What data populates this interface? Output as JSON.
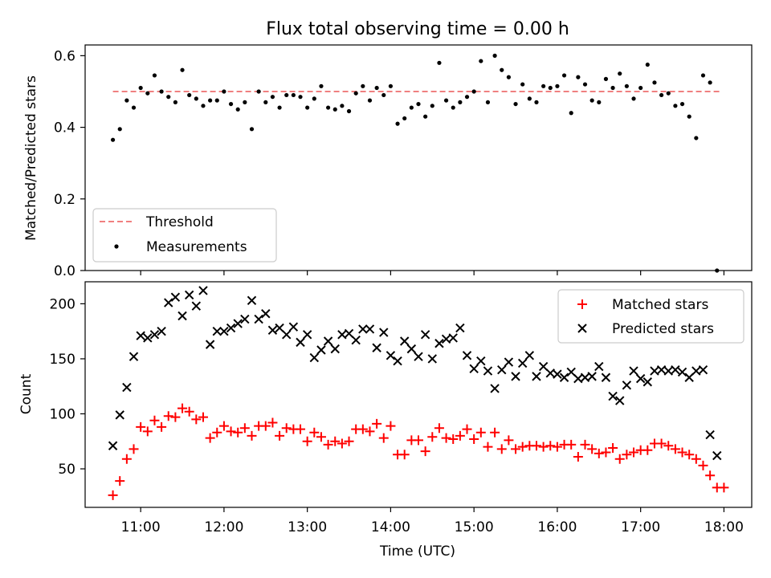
{
  "colors": {
    "threshold": "#f08080",
    "measurement": "#000000",
    "matched": "#ff0000",
    "predicted": "#000000"
  },
  "chart_data": [
    {
      "type": "scatter",
      "title": "Flux total observing time = 0.00 h",
      "xlabel": "",
      "ylabel": "Matched/Predicted stars",
      "xlim": [
        "10:20",
        "18:20"
      ],
      "ylim": [
        0,
        0.63
      ],
      "yticks": [
        "0.0",
        "0.2",
        "0.4",
        "0.6"
      ],
      "legend_position": "lower-left",
      "threshold": {
        "name": "Threshold",
        "value": 0.5,
        "x_range": [
          "10:40",
          "17:58"
        ]
      },
      "series": [
        {
          "name": "Measurements",
          "x": [
            "10:40",
            "10:45",
            "10:50",
            "10:55",
            "11:00",
            "11:05",
            "11:10",
            "11:15",
            "11:20",
            "11:25",
            "11:30",
            "11:35",
            "11:40",
            "11:45",
            "11:50",
            "11:55",
            "12:00",
            "12:05",
            "12:10",
            "12:15",
            "12:20",
            "12:25",
            "12:30",
            "12:35",
            "12:40",
            "12:45",
            "12:50",
            "12:55",
            "13:00",
            "13:05",
            "13:10",
            "13:15",
            "13:20",
            "13:25",
            "13:30",
            "13:35",
            "13:40",
            "13:45",
            "13:50",
            "13:55",
            "14:00",
            "14:05",
            "14:10",
            "14:15",
            "14:20",
            "14:25",
            "14:30",
            "14:35",
            "14:40",
            "14:45",
            "14:50",
            "14:55",
            "15:00",
            "15:05",
            "15:10",
            "15:15",
            "15:20",
            "15:25",
            "15:30",
            "15:35",
            "15:40",
            "15:45",
            "15:50",
            "15:55",
            "16:00",
            "16:05",
            "16:10",
            "16:15",
            "16:20",
            "16:25",
            "16:30",
            "16:35",
            "16:40",
            "16:45",
            "16:50",
            "16:55",
            "17:00",
            "17:05",
            "17:10",
            "17:15",
            "17:20",
            "17:25",
            "17:30",
            "17:35",
            "17:40",
            "17:45",
            "17:50",
            "17:55",
            "17:57"
          ],
          "y": [
            0.365,
            0.395,
            0.475,
            0.455,
            0.51,
            0.495,
            0.545,
            0.5,
            0.485,
            0.47,
            0.56,
            0.49,
            0.48,
            0.46,
            0.475,
            0.475,
            0.5,
            0.465,
            0.45,
            0.47,
            0.395,
            0.5,
            0.47,
            0.485,
            0.455,
            0.49,
            0.49,
            0.485,
            0.455,
            0.48,
            0.515,
            0.455,
            0.45,
            0.46,
            0.445,
            0.495,
            0.515,
            0.475,
            0.51,
            0.49,
            0.515,
            0.41,
            0.425,
            0.455,
            0.465,
            0.43,
            0.46,
            0.58,
            0.475,
            0.455,
            0.47,
            0.485,
            0.5,
            0.585,
            0.47,
            0.6,
            0.56,
            0.54,
            0.465,
            0.52,
            0.48,
            0.47,
            0.515,
            0.51,
            0.515,
            0.545,
            0.44,
            0.54,
            0.52,
            0.475,
            0.47,
            0.535,
            0.51,
            0.55,
            0.515,
            0.48,
            0.51,
            0.575,
            0.525,
            0.49,
            0.495,
            0.46,
            0.465,
            0.43,
            0.37,
            0.545,
            0.525,
            0.0,
            null
          ]
        }
      ]
    },
    {
      "type": "scatter",
      "title": "",
      "xlabel": "Time (UTC)",
      "ylabel": "Count",
      "xlim": [
        "10:20",
        "18:20"
      ],
      "ylim": [
        15,
        220
      ],
      "yticks": [
        "50",
        "100",
        "150",
        "200"
      ],
      "xticks": [
        "11:00",
        "12:00",
        "13:00",
        "14:00",
        "15:00",
        "16:00",
        "17:00",
        "18:00"
      ],
      "legend_position": "upper-right",
      "series": [
        {
          "name": "Matched stars",
          "marker": "+",
          "x": [
            "10:40",
            "10:45",
            "10:50",
            "10:55",
            "11:00",
            "11:05",
            "11:10",
            "11:15",
            "11:20",
            "11:25",
            "11:30",
            "11:35",
            "11:40",
            "11:45",
            "11:50",
            "11:55",
            "12:00",
            "12:05",
            "12:10",
            "12:15",
            "12:20",
            "12:25",
            "12:30",
            "12:35",
            "12:40",
            "12:45",
            "12:50",
            "12:55",
            "13:00",
            "13:05",
            "13:10",
            "13:15",
            "13:20",
            "13:25",
            "13:30",
            "13:35",
            "13:40",
            "13:45",
            "13:50",
            "13:55",
            "14:00",
            "14:05",
            "14:10",
            "14:15",
            "14:20",
            "14:25",
            "14:30",
            "14:35",
            "14:40",
            "14:45",
            "14:50",
            "14:55",
            "15:00",
            "15:05",
            "15:10",
            "15:15",
            "15:20",
            "15:25",
            "15:30",
            "15:35",
            "15:40",
            "15:45",
            "15:50",
            "15:55",
            "16:00",
            "16:05",
            "16:10",
            "16:15",
            "16:20",
            "16:25",
            "16:30",
            "16:35",
            "16:40",
            "16:45",
            "16:50",
            "16:55",
            "17:00",
            "17:05",
            "17:10",
            "17:15",
            "17:20",
            "17:25",
            "17:30",
            "17:35",
            "17:40",
            "17:45",
            "17:50",
            "17:55",
            "18:00"
          ],
          "y": [
            26,
            39,
            59,
            68,
            88,
            84,
            94,
            88,
            98,
            97,
            105,
            102,
            95,
            97,
            78,
            83,
            89,
            84,
            83,
            87,
            80,
            89,
            89,
            92,
            80,
            87,
            86,
            86,
            75,
            83,
            79,
            72,
            75,
            73,
            75,
            86,
            86,
            84,
            91,
            78,
            89,
            63,
            63,
            76,
            76,
            66,
            79,
            87,
            78,
            77,
            80,
            86,
            77,
            83,
            70,
            83,
            68,
            76,
            68,
            70,
            71,
            71,
            70,
            71,
            70,
            72,
            72,
            61,
            72,
            68,
            64,
            65,
            69,
            59,
            63,
            65,
            67,
            67,
            73,
            73,
            71,
            68,
            65,
            63,
            59,
            53,
            44,
            33,
            33
          ]
        },
        {
          "name": "Predicted stars",
          "marker": "x",
          "x": [
            "10:40",
            "10:45",
            "10:50",
            "10:55",
            "11:00",
            "11:05",
            "11:10",
            "11:15",
            "11:20",
            "11:25",
            "11:30",
            "11:35",
            "11:40",
            "11:45",
            "11:50",
            "11:55",
            "12:00",
            "12:05",
            "12:10",
            "12:15",
            "12:20",
            "12:25",
            "12:30",
            "12:35",
            "12:40",
            "12:45",
            "12:50",
            "12:55",
            "13:00",
            "13:05",
            "13:10",
            "13:15",
            "13:20",
            "13:25",
            "13:30",
            "13:35",
            "13:40",
            "13:45",
            "13:50",
            "13:55",
            "14:00",
            "14:05",
            "14:10",
            "14:15",
            "14:20",
            "14:25",
            "14:30",
            "14:35",
            "14:40",
            "14:45",
            "14:50",
            "14:55",
            "15:00",
            "15:05",
            "15:10",
            "15:15",
            "15:20",
            "15:25",
            "15:30",
            "15:35",
            "15:40",
            "15:45",
            "15:50",
            "15:55",
            "16:00",
            "16:05",
            "16:10",
            "16:15",
            "16:20",
            "16:25",
            "16:30",
            "16:35",
            "16:40",
            "16:45",
            "16:50",
            "16:55",
            "17:00",
            "17:05",
            "17:10",
            "17:15",
            "17:20",
            "17:25",
            "17:30",
            "17:35",
            "17:40",
            "17:45",
            "17:50",
            "17:55"
          ],
          "y": [
            71,
            99,
            124,
            152,
            171,
            169,
            172,
            175,
            201,
            206,
            189,
            208,
            198,
            212,
            163,
            175,
            175,
            178,
            182,
            186,
            203,
            186,
            191,
            176,
            178,
            172,
            179,
            165,
            172,
            151,
            158,
            166,
            159,
            172,
            173,
            167,
            177,
            177,
            160,
            174,
            153,
            148,
            166,
            159,
            152,
            172,
            150,
            164,
            168,
            169,
            178,
            153,
            141,
            148,
            139,
            123,
            140,
            147,
            134,
            146,
            153,
            134,
            143,
            137,
            136,
            133,
            138,
            132,
            133,
            134,
            143,
            133,
            116,
            112,
            126,
            139,
            132,
            129,
            139,
            140,
            139,
            140,
            138,
            133,
            139,
            140,
            81,
            62
          ]
        }
      ]
    }
  ]
}
